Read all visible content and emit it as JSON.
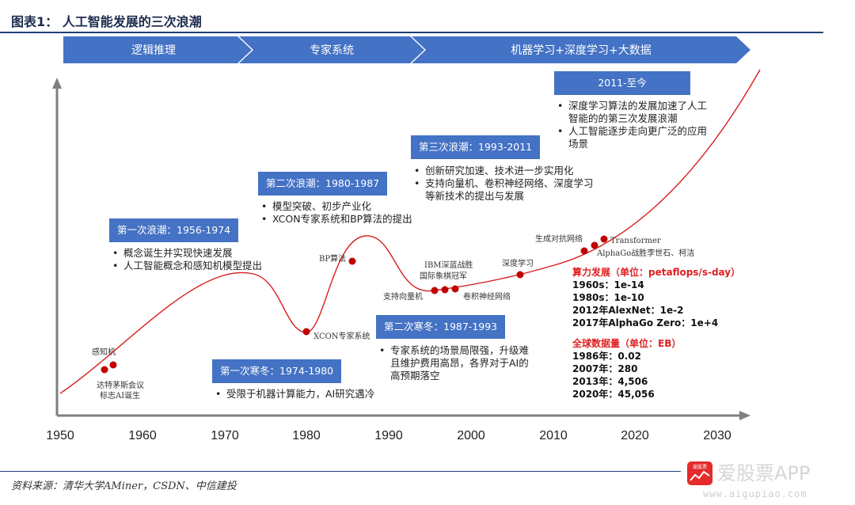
{
  "title": "图表1： 人工智能发展的三次浪潮",
  "eras": [
    {
      "label": "逻辑推理"
    },
    {
      "label": "专家系统"
    },
    {
      "label": "机器学习+深度学习+大数据"
    }
  ],
  "periods": [
    {
      "title": "第一次浪潮：1956-1974",
      "bullets": [
        "概念诞生并实现快速发展",
        "人工智能概念和感知机模型提出"
      ]
    },
    {
      "title": "第一次寒冬：1974-1980",
      "bullets": [
        "受限于机器计算能力，AI研究遇冷"
      ]
    },
    {
      "title": "第二次浪潮：1980-1987",
      "bullets": [
        "模型突破、初步产业化",
        "XCON专家系统和BP算法的提出"
      ]
    },
    {
      "title": "第二次寒冬：1987-1993",
      "bullets": [
        "专家系统的场景局限强，升级难且维护费用高昂，各界对于AI的高预期落空"
      ]
    },
    {
      "title": "第三次浪潮：1993-2011",
      "bullets": [
        "创新研究加速、技术进一步实用化",
        "支持向量机、卷积神经网络、深度学习等新技术的提出与发展"
      ]
    },
    {
      "title": "2011-至今",
      "bullets": [
        "深度学习算法的发展加速了人工智能的的第三次发展浪潮",
        "人工智能逐步走向更广泛的应用场景"
      ]
    }
  ],
  "events": [
    {
      "label": "感知机",
      "year": 1956
    },
    {
      "label": "达特茅斯会议",
      "label2": "标志AI诞生",
      "year": 1955
    },
    {
      "label": "BP算法",
      "year": 1986
    },
    {
      "label": "XCON专家系统",
      "year": 1980
    },
    {
      "label": "IBM深蓝战胜",
      "label2": "国际象棋冠军",
      "year": 1997
    },
    {
      "label": "支持向量机",
      "year": 1995.5
    },
    {
      "label": "卷积神经网络",
      "year": 1998
    },
    {
      "label": "深度学习",
      "year": 2006
    },
    {
      "label": "生成对抗网络",
      "year": 2014
    },
    {
      "label": "Transformer",
      "year": 2017
    },
    {
      "label": "AlphaGo战胜李世石、柯洁",
      "year": 2015.5
    }
  ],
  "axis": {
    "ticks": [
      "1950",
      "1960",
      "1970",
      "1980",
      "1990",
      "2000",
      "2010",
      "2020",
      "2030"
    ]
  },
  "compute": {
    "heading": "算力发展（单位：petaflops/s-day）",
    "rows": [
      "1960s：1e-14",
      "1980s：1e-10",
      "2012年AlexNet：1e-2",
      "2017年AlphaGo Zero：1e+4"
    ]
  },
  "datavol": {
    "heading": "全球数据量（单位：EB）",
    "rows": [
      "1986年：0.02",
      "2007年：280",
      "2013年：4,506",
      "2020年：45,056"
    ]
  },
  "source": "资料来源：清华大学AMiner，CSDN、中信建投",
  "watermark": {
    "brand": "爱股票APP",
    "url": "www.aigupiao.com",
    "logo_text": "爱股票"
  },
  "colors": {
    "arrow_fill": "#4472c4",
    "curve": "#d81e1e",
    "box_fill": "#4472c4",
    "axis": "#7f7f7f",
    "highlight": "#e02020"
  }
}
